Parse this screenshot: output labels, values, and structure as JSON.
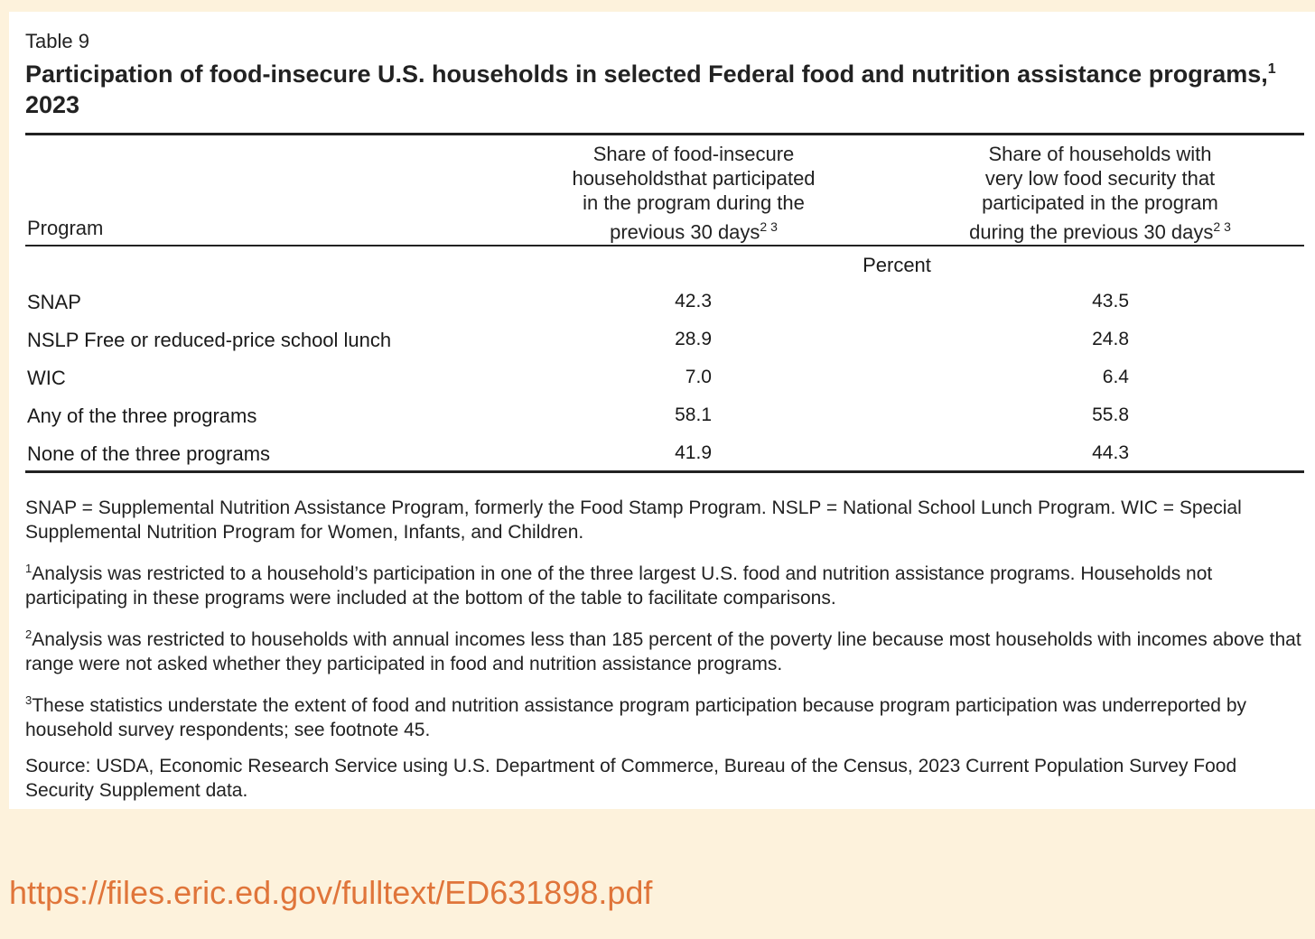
{
  "table": {
    "label": "Table 9",
    "title": "Participation of food-insecure U.S. households in selected Federal food and nutrition assistance programs,",
    "title_sup": "1",
    "title_year": " 2023",
    "headers": {
      "program": "Program",
      "col1_lines": [
        "Share of food-insecure",
        "householdsthat participated",
        "in the program during the",
        "previous 30 days"
      ],
      "col1_sup": "2 3",
      "col2_lines": [
        "Share of households with",
        "very low food security that",
        "participated in the program",
        "during the previous 30 days"
      ],
      "col2_sup": "2 3"
    },
    "unit": "Percent",
    "rows": [
      {
        "program": "SNAP",
        "v1": "42.3",
        "v2": "43.5"
      },
      {
        "program": "NSLP Free or reduced-price school lunch",
        "v1": "28.9",
        "v2": "24.8"
      },
      {
        "program": "WIC",
        "v1": "7.0",
        "v2": "6.4"
      },
      {
        "program": "Any of the three programs",
        "v1": "58.1",
        "v2": "55.8"
      },
      {
        "program": "None of the three programs",
        "v1": "41.9",
        "v2": "44.3"
      }
    ]
  },
  "notes": {
    "abbrev": "SNAP = Supplemental Nutrition Assistance Program, formerly the Food Stamp Program. NSLP = National School Lunch Program. WIC = Special Supplemental Nutrition Program for Women, Infants, and Children.",
    "fn1_mark": "1",
    "fn1": "Analysis was restricted to a household’s participation in one of the three largest U.S. food and nutrition assistance programs. Households not participating in these programs were included at the bottom of the table to facilitate comparisons.",
    "fn2_mark": "2",
    "fn2": "Analysis was restricted to households with annual incomes less than 185 percent of the poverty line because most households with incomes above that range were not asked whether they participated in food and nutrition assistance programs.",
    "fn3_mark": "3",
    "fn3": "These statistics understate the extent of food and nutrition assistance program participation because program participation was underreported by household survey respondents; see footnote 45.",
    "source": "Source: USDA, Economic Research Service using U.S. Department of Commerce, Bureau of the Census, 2023 Current Population Survey Food Security Supplement data."
  },
  "url": "https://files.eric.ed.gov/fulltext/ED631898.pdf"
}
